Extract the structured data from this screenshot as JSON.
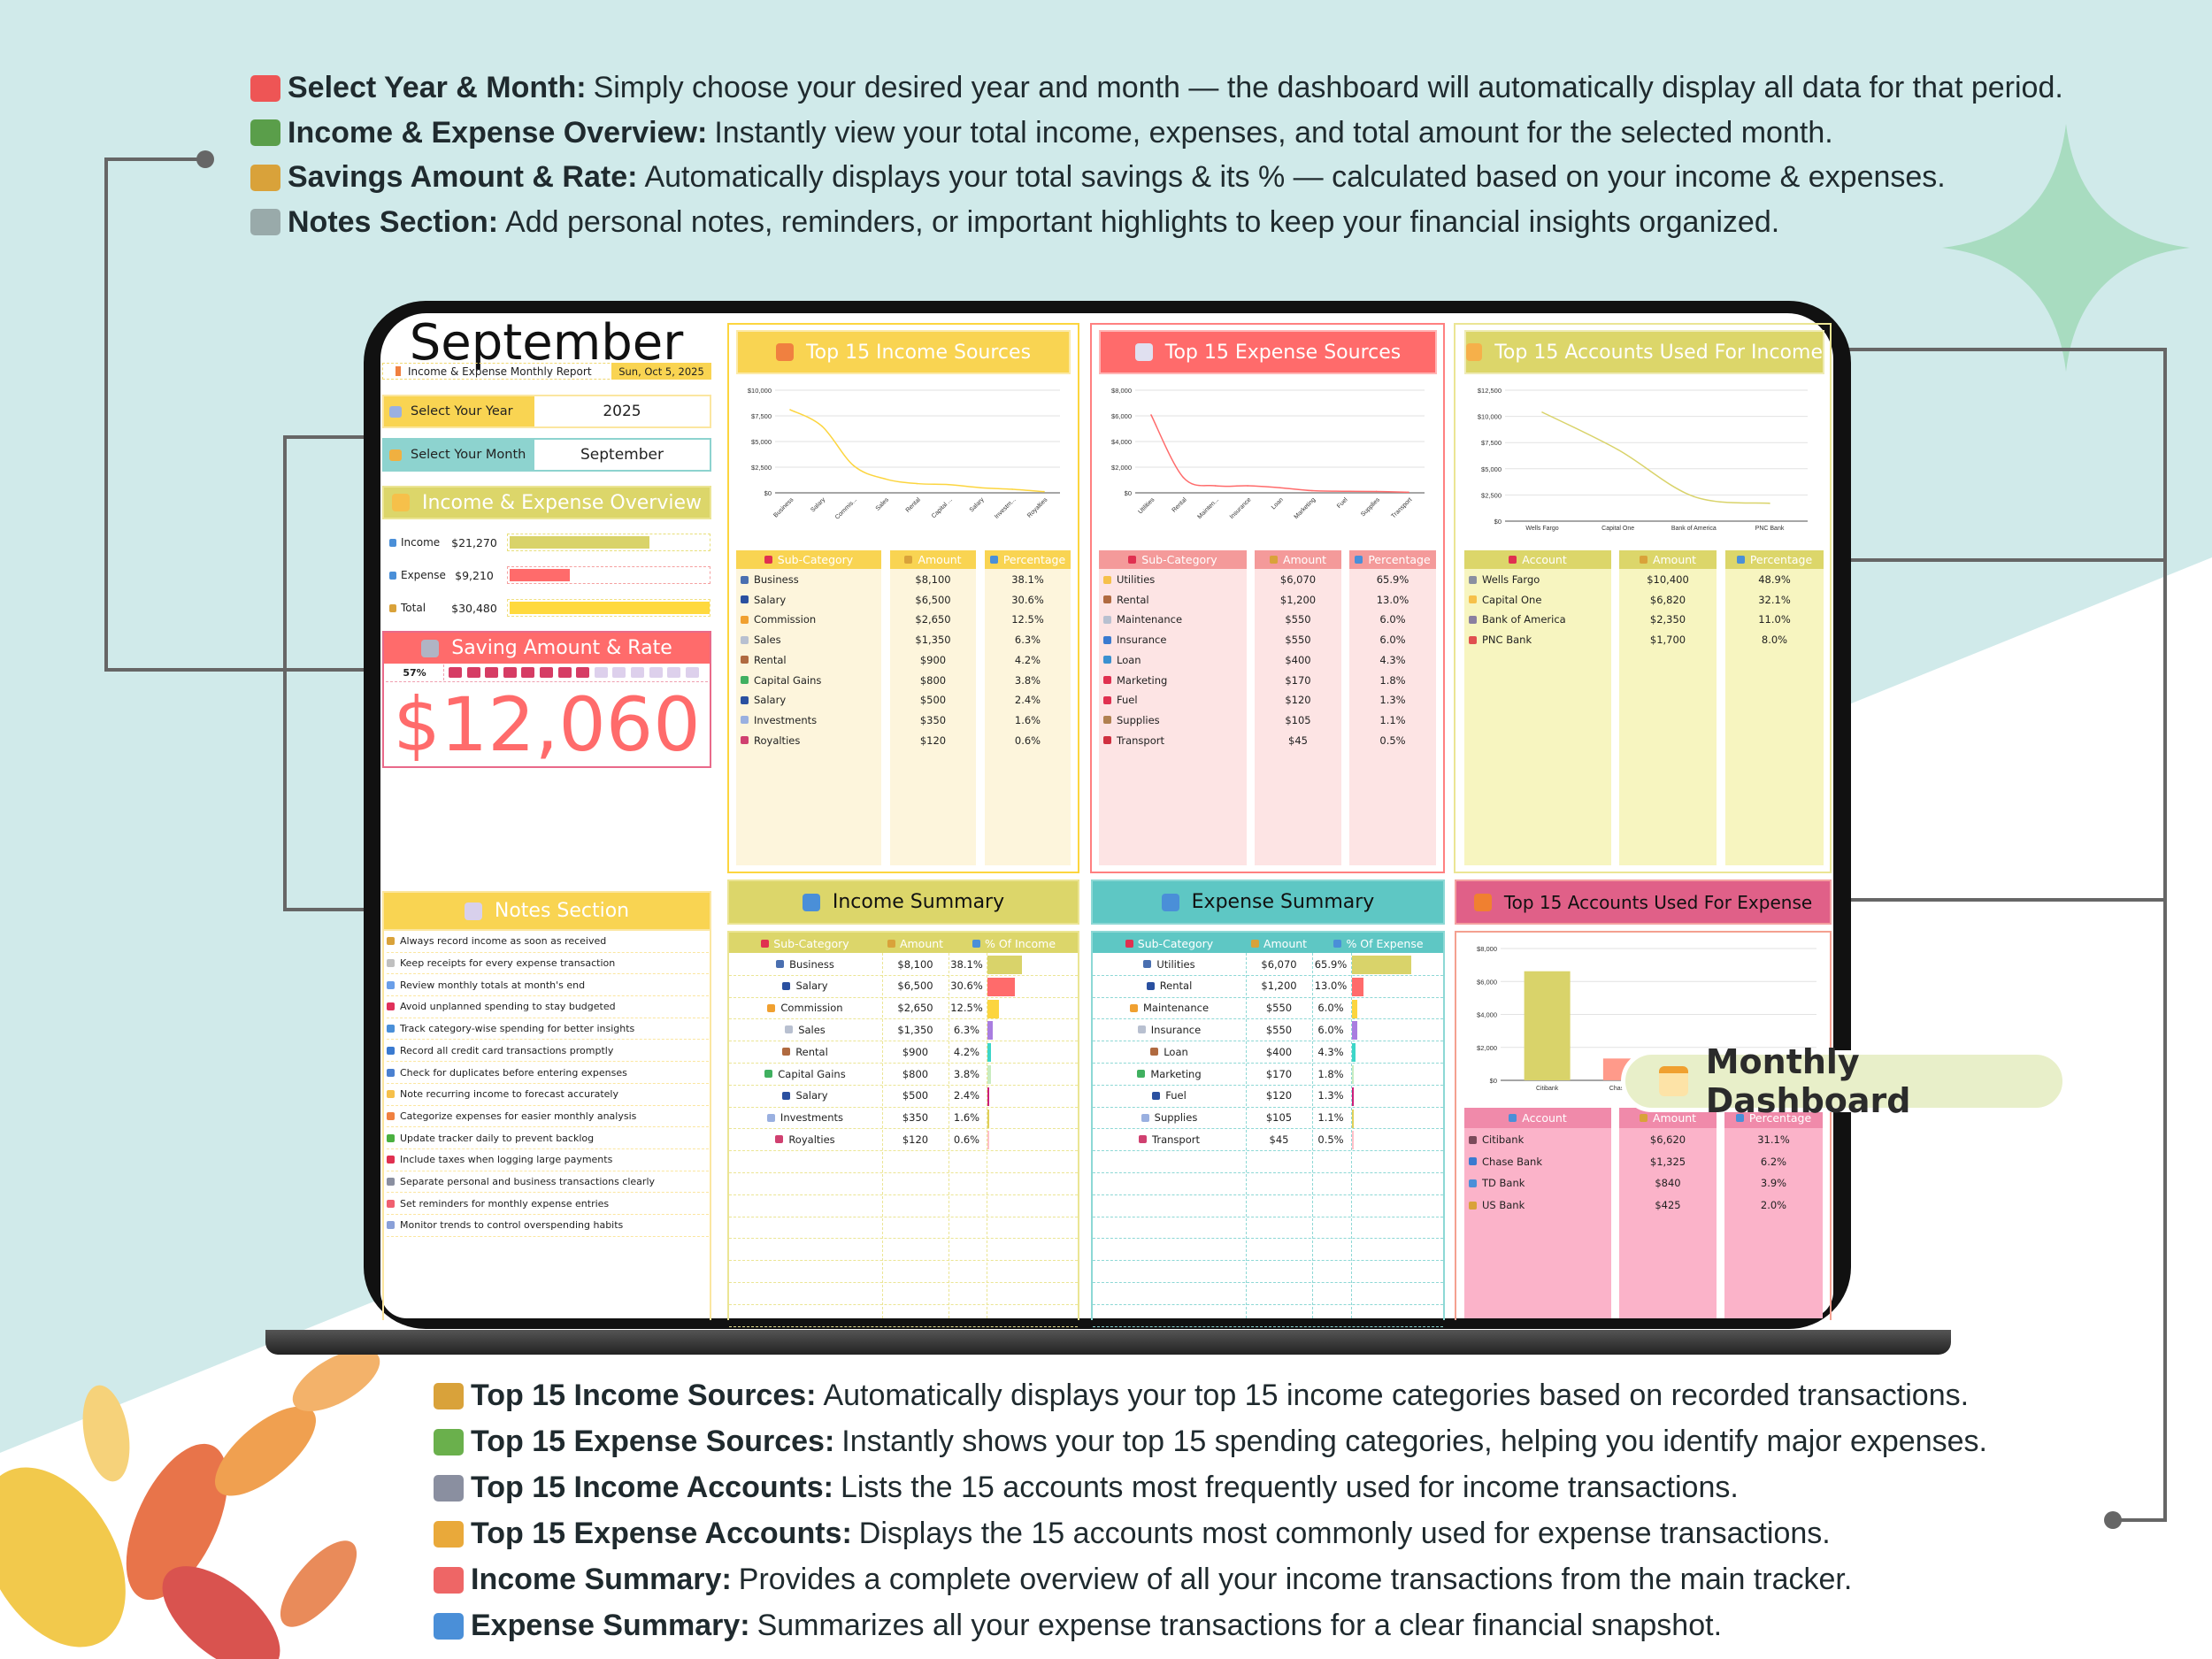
{
  "intro": {
    "items": [
      {
        "icon": "calendar-icon",
        "color": "#e55",
        "bold": "Select Year & Month:",
        "text": "Simply choose your desired year and month — the dashboard will automatically display all data for that period."
      },
      {
        "icon": "money-icon",
        "color": "#5a9e4a",
        "bold": "Income & Expense Overview:",
        "text": "Instantly view your total income, expenses, and total amount for the selected month."
      },
      {
        "icon": "money-bag-icon",
        "color": "#d9a23a",
        "bold": "Savings Amount & Rate:",
        "text": "Automatically displays your total savings & its % — calculated based on your income & expenses."
      },
      {
        "icon": "notepad-icon",
        "color": "#9aa",
        "bold": "Notes Section:",
        "text": "Add personal notes, reminders, or important highlights to keep your financial insights organized."
      }
    ]
  },
  "footer": {
    "items": [
      {
        "icon": "money-bag-icon",
        "color": "#d9a23a",
        "bold": "Top 15 Income Sources:",
        "text": "Automatically displays your top 15 income categories based on recorded transactions."
      },
      {
        "icon": "money-wings-icon",
        "color": "#6ab04c",
        "bold": "Top 15 Expense Sources:",
        "text": "Instantly shows your top 15 spending categories, helping you identify major expenses."
      },
      {
        "icon": "bank-icon",
        "color": "#8a8fa0",
        "bold": "Top 15 Income Accounts:",
        "text": "Lists the 15 accounts most frequently used for income transactions."
      },
      {
        "icon": "credit-card-icon",
        "color": "#e9a93a",
        "bold": "Top 15 Expense Accounts:",
        "text": "Displays the 15 accounts most commonly used for expense transactions."
      },
      {
        "icon": "chart-up-icon",
        "color": "#e66",
        "bold": "Income Summary:",
        "text": "Provides a complete overview of all your income transactions from the main tracker."
      },
      {
        "icon": "chart-down-icon",
        "color": "#4a8fd8",
        "bold": "Expense Summary:",
        "text": "Summarizes all your expense transactions for a clear financial snapshot."
      }
    ]
  },
  "badge": {
    "label": "Monthly Dashboard"
  },
  "dashboard": {
    "month_title": "September",
    "subtitle": "Income & Expense Monthly Report",
    "date": "Sun, Oct 5, 2025",
    "year_label": "Select Your Year",
    "year_value": "2025",
    "month_label": "Select Your Month",
    "month_value": "September",
    "overview": {
      "title": "Income & Expense Overview",
      "rows": [
        {
          "label": "Income",
          "value": "$21,270",
          "fraction": 0.698,
          "color": "#d9d36a",
          "border": "#e8df7a"
        },
        {
          "label": "Expense",
          "value": "$9,210",
          "fraction": 0.302,
          "color": "#ff6b6b",
          "border": "#f5a0a0"
        },
        {
          "label": "Total",
          "value": "$30,480",
          "fraction": 1.0,
          "color": "#ffd93d",
          "border": "#f0df80"
        }
      ]
    },
    "saving": {
      "title": "Saving Amount & Rate",
      "rate": "57%",
      "rate_value": 0.57,
      "amount": "$12,060"
    },
    "notes": {
      "title": "Notes Section",
      "items": [
        "Always record income as soon as received",
        "Keep receipts for every expense transaction",
        "Review monthly totals at month's end",
        "Avoid unplanned spending to stay budgeted",
        "Track category-wise spending for better insights",
        "Record all credit card transactions promptly",
        "Check for duplicates before entering expenses",
        "Note recurring income to forecast accurately",
        "Categorize expenses for easier monthly analysis",
        "Update tracker daily to prevent backlog",
        "Include taxes when logging large payments",
        "Separate personal and business transactions clearly",
        "Set reminders for monthly expense entries",
        "Monitor trends to control overspending habits"
      ]
    },
    "income_sources": {
      "title": "Top 15 Income Sources",
      "headers": [
        "Sub-Category",
        "Amount",
        "Percentage"
      ],
      "rows": [
        [
          "Business",
          "$8,100",
          "38.1%"
        ],
        [
          "Salary",
          "$6,500",
          "30.6%"
        ],
        [
          "Commission",
          "$2,650",
          "12.5%"
        ],
        [
          "Sales",
          "$1,350",
          "6.3%"
        ],
        [
          "Rental",
          "$900",
          "4.2%"
        ],
        [
          "Capital Gains",
          "$800",
          "3.8%"
        ],
        [
          "Salary",
          "$500",
          "2.4%"
        ],
        [
          "Investments",
          "$350",
          "1.6%"
        ],
        [
          "Royalties",
          "$120",
          "0.6%"
        ]
      ]
    },
    "expense_sources": {
      "title": "Top 15 Expense Sources",
      "headers": [
        "Sub-Category",
        "Amount",
        "Percentage"
      ],
      "rows": [
        [
          "Utilities",
          "$6,070",
          "65.9%"
        ],
        [
          "Rental",
          "$1,200",
          "13.0%"
        ],
        [
          "Maintenance",
          "$550",
          "6.0%"
        ],
        [
          "Insurance",
          "$550",
          "6.0%"
        ],
        [
          "Loan",
          "$400",
          "4.3%"
        ],
        [
          "Marketing",
          "$170",
          "1.8%"
        ],
        [
          "Fuel",
          "$120",
          "1.3%"
        ],
        [
          "Supplies",
          "$105",
          "1.1%"
        ],
        [
          "Transport",
          "$45",
          "0.5%"
        ]
      ]
    },
    "income_accounts": {
      "title": "Top 15 Accounts Used For Income",
      "headers": [
        "Account",
        "Amount",
        "Percentage"
      ],
      "rows": [
        [
          "Wells Fargo",
          "$10,400",
          "48.9%"
        ],
        [
          "Capital One",
          "$6,820",
          "32.1%"
        ],
        [
          "Bank of America",
          "$2,350",
          "11.0%"
        ],
        [
          "PNC Bank",
          "$1,700",
          "8.0%"
        ]
      ]
    },
    "expense_accounts": {
      "title": "Top 15 Accounts Used For Expense",
      "headers": [
        "Account",
        "Amount",
        "Percentage"
      ],
      "rows": [
        [
          "Citibank",
          "$6,620",
          "31.1%"
        ],
        [
          "Chase Bank",
          "$1,325",
          "6.2%"
        ],
        [
          "TD Bank",
          "$840",
          "3.9%"
        ],
        [
          "US Bank",
          "$425",
          "2.0%"
        ]
      ]
    },
    "income_summary": {
      "title": "Income Summary",
      "headers": [
        "Sub-Category",
        "Amount",
        "% Of Income"
      ],
      "rows": [
        [
          "Business",
          "$8,100",
          "38.1%",
          38.1
        ],
        [
          "Salary",
          "$6,500",
          "30.6%",
          30.6
        ],
        [
          "Commission",
          "$2,650",
          "12.5%",
          12.5
        ],
        [
          "Sales",
          "$1,350",
          "6.3%",
          6.3
        ],
        [
          "Rental",
          "$900",
          "4.2%",
          4.2
        ],
        [
          "Capital Gains",
          "$800",
          "3.8%",
          3.8
        ],
        [
          "Salary",
          "$500",
          "2.4%",
          2.4
        ],
        [
          "Investments",
          "$350",
          "1.6%",
          1.6
        ],
        [
          "Royalties",
          "$120",
          "0.6%",
          0.6
        ]
      ]
    },
    "expense_summary": {
      "title": "Expense Summary",
      "headers": [
        "Sub-Category",
        "Amount",
        "% Of Expense"
      ],
      "rows": [
        [
          "Utilities",
          "$6,070",
          "65.9%",
          65.9
        ],
        [
          "Rental",
          "$1,200",
          "13.0%",
          13.0
        ],
        [
          "Maintenance",
          "$550",
          "6.0%",
          6.0
        ],
        [
          "Insurance",
          "$550",
          "6.0%",
          6.0
        ],
        [
          "Loan",
          "$400",
          "4.3%",
          4.3
        ],
        [
          "Marketing",
          "$170",
          "1.8%",
          1.8
        ],
        [
          "Fuel",
          "$120",
          "1.3%",
          1.3
        ],
        [
          "Supplies",
          "$105",
          "1.1%",
          1.1
        ],
        [
          "Transport",
          "$45",
          "0.5%",
          0.5
        ]
      ]
    },
    "summary_bar_colors": [
      "#d9d36a",
      "#ff6b6b",
      "#fcd53f",
      "#a97de0",
      "#3dd6c8",
      "#c8ecc0",
      "#cc1f7a",
      "#e0cf5a",
      "#ffc0c8"
    ]
  },
  "chart_data": [
    {
      "type": "line",
      "color": "#fcd53f",
      "categories": [
        "Business",
        "Salary",
        "Commis...",
        "Sales",
        "Rental",
        "Capital ...",
        "Salary",
        "Investm...",
        "Royalties"
      ],
      "values": [
        8100,
        6500,
        2650,
        1350,
        900,
        800,
        500,
        350,
        120
      ],
      "ylim": [
        0,
        10000
      ],
      "yticks": [
        "$0",
        "$2,500",
        "$5,000",
        "$7,500",
        "$10,000"
      ],
      "grid": true
    },
    {
      "type": "line",
      "color": "#ff6b6b",
      "categories": [
        "Utilities",
        "Rental",
        "Mainten...",
        "Insurance",
        "Loan",
        "Marketing",
        "Fuel",
        "Supplies",
        "Transport"
      ],
      "values": [
        6070,
        1200,
        550,
        550,
        400,
        170,
        120,
        105,
        45
      ],
      "ylim": [
        0,
        8000
      ],
      "yticks": [
        "$0",
        "$2,000",
        "$4,000",
        "$6,000",
        "$8,000"
      ],
      "grid": true
    },
    {
      "type": "line",
      "color": "#d9d36a",
      "categories": [
        "Wells Fargo",
        "Capital One",
        "Bank of America",
        "PNC Bank"
      ],
      "values": [
        10400,
        6820,
        2350,
        1700
      ],
      "ylim": [
        0,
        12500
      ],
      "yticks": [
        "$0",
        "$2,500",
        "$5,000",
        "$7,500",
        "$10,000",
        "$12,500"
      ],
      "grid": true
    },
    {
      "type": "bar",
      "colors": [
        "#d9d36a",
        "#ff9a8a",
        "#f5c060",
        "#a97de0"
      ],
      "categories": [
        "Citibank",
        "Chase Bank",
        "TD Bank",
        "US Bank"
      ],
      "values": [
        6620,
        1325,
        840,
        425
      ],
      "ylim": [
        0,
        8000
      ],
      "yticks": [
        "$0",
        "$2,000",
        "$4,000",
        "$6,000",
        "$8,000"
      ],
      "grid": true
    }
  ]
}
